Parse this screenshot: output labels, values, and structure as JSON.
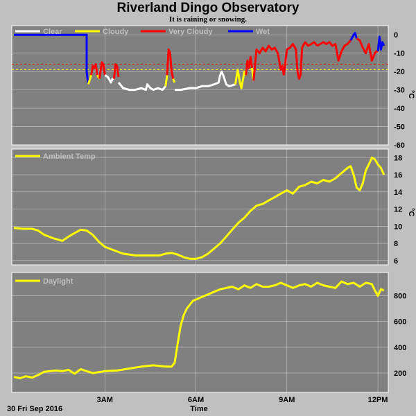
{
  "header": {
    "title": "Riverland Dingo Observatory",
    "subtitle": "It is raining or snowing."
  },
  "footer": {
    "date_label": "30 Fri Sep 2016",
    "xaxis_label": "Time"
  },
  "colors": {
    "background": "#c0c0c0",
    "plot_bg": "#808080",
    "grid": "#ffffff",
    "clear": "#ffffff",
    "cloudy": "#ffff00",
    "very_cloudy": "#ff0000",
    "wet": "#0000ff",
    "threshold_line": "#ff0000",
    "threshold_line2": "#ffff00"
  },
  "chart_data": [
    {
      "type": "line",
      "id": "sky",
      "ylabel": "°C",
      "ylim": [
        -60,
        5
      ],
      "yticks": [
        0,
        -10,
        -20,
        -30,
        -40,
        -50,
        -60
      ],
      "xlim": [
        0,
        12.25
      ],
      "xticks": [
        3,
        6,
        9,
        12
      ],
      "xtick_labels": [
        "3AM",
        "6AM",
        "9AM",
        "12PM"
      ],
      "grid": true,
      "legend_position": "top-left",
      "legend": [
        {
          "name": "Clear",
          "color": "#ffffff"
        },
        {
          "name": "Cloudy",
          "color": "#ffff00"
        },
        {
          "name": "Very Cloudy",
          "color": "#ff0000"
        },
        {
          "name": "Wet",
          "color": "#0000ff"
        }
      ],
      "thresholds": [
        {
          "y": -16,
          "color": "#ff0000"
        },
        {
          "y": -19,
          "color": "#ffff00"
        }
      ],
      "segments": [
        {
          "c": "#0000ff",
          "x": [
            0,
            2.4,
            2.4,
            2.45
          ],
          "y": [
            0,
            0,
            -20,
            -27
          ]
        },
        {
          "c": "#ffff00",
          "x": [
            2.45,
            2.55
          ],
          "y": [
            -27,
            -22
          ]
        },
        {
          "c": "#ff0000",
          "x": [
            2.55,
            2.6,
            2.65,
            2.7,
            2.75
          ],
          "y": [
            -22,
            -17,
            -18,
            -16,
            -22
          ]
        },
        {
          "c": "#ffff00",
          "x": [
            2.75,
            2.82
          ],
          "y": [
            -22,
            -24
          ]
        },
        {
          "c": "#ff0000",
          "x": [
            2.82,
            2.9,
            2.95,
            3.0
          ],
          "y": [
            -24,
            -15,
            -16,
            -22
          ]
        },
        {
          "c": "#ffffff",
          "x": [
            3.0,
            3.1,
            3.2,
            3.25,
            3.3
          ],
          "y": [
            -22,
            -23,
            -26,
            -24,
            -24
          ]
        },
        {
          "c": "#ff0000",
          "x": [
            3.3,
            3.35,
            3.4,
            3.45
          ],
          "y": [
            -24,
            -16,
            -17,
            -23
          ]
        },
        {
          "c": "#ffffff",
          "x": [
            3.45,
            3.6,
            3.8,
            4.0,
            4.2,
            4.35,
            4.4,
            4.5,
            4.6,
            4.75,
            4.9,
            5.0
          ],
          "y": [
            -26,
            -29,
            -30,
            -30,
            -29,
            -30,
            -27,
            -29,
            -30,
            -29,
            -30,
            -28
          ]
        },
        {
          "c": "#ffff00",
          "x": [
            5.0,
            5.05
          ],
          "y": [
            -28,
            -22
          ]
        },
        {
          "c": "#ff0000",
          "x": [
            5.05,
            5.1,
            5.15,
            5.2,
            5.25
          ],
          "y": [
            -22,
            -8,
            -10,
            -20,
            -24
          ]
        },
        {
          "c": "#ffff00",
          "x": [
            5.25,
            5.3
          ],
          "y": [
            -24,
            -26
          ]
        },
        {
          "c": "#ffffff",
          "x": [
            5.3,
            5.5,
            5.8,
            6.0,
            6.2,
            6.4,
            6.6,
            6.75,
            6.8,
            6.85,
            6.9,
            7.0,
            7.1,
            7.3
          ],
          "y": [
            -30,
            -30,
            -29,
            -29,
            -28,
            -28,
            -27,
            -26,
            -22,
            -20,
            -22,
            -27,
            -28,
            -27
          ]
        },
        {
          "c": "#ffff00",
          "x": [
            7.3,
            7.38,
            7.45,
            7.5,
            7.6,
            7.65
          ],
          "y": [
            -27,
            -19,
            -26,
            -29,
            -20,
            -22
          ]
        },
        {
          "c": "#ff0000",
          "x": [
            7.65,
            7.7,
            7.75,
            7.8,
            7.85
          ],
          "y": [
            -22,
            -14,
            -18,
            -12,
            -18
          ]
        },
        {
          "c": "#ffff00",
          "x": [
            7.85,
            7.9
          ],
          "y": [
            -18,
            -25
          ]
        },
        {
          "c": "#ff0000",
          "x": [
            7.9,
            8.0,
            8.1,
            8.2,
            8.3,
            8.4,
            8.5,
            8.6,
            8.7,
            8.8,
            8.85,
            8.9
          ],
          "y": [
            -25,
            -8,
            -10,
            -7,
            -9,
            -6,
            -8,
            -7,
            -10,
            -19,
            -17,
            -22
          ]
        },
        {
          "c": "#ff0000",
          "x": [
            8.9,
            9.0,
            9.1,
            9.2,
            9.3,
            9.35,
            9.4,
            9.45,
            9.5,
            9.6,
            9.7,
            9.8,
            9.9,
            10.0
          ],
          "y": [
            -22,
            -8,
            -7,
            -5,
            -8,
            -20,
            -24,
            -22,
            -7,
            -4,
            -6,
            -5,
            -4,
            -6
          ]
        },
        {
          "c": "#ff0000",
          "x": [
            10.0,
            10.1,
            10.2,
            10.3,
            10.4,
            10.5,
            10.6,
            10.7,
            10.8,
            10.9,
            11.0,
            11.1
          ],
          "y": [
            -6,
            -5,
            -4,
            -5,
            -4,
            -6,
            -5,
            -14,
            -9,
            -6,
            -5,
            -3
          ]
        },
        {
          "c": "#0000ff",
          "x": [
            11.1,
            11.2,
            11.25,
            11.3
          ],
          "y": [
            -3,
            0,
            1,
            -2
          ]
        },
        {
          "c": "#ff0000",
          "x": [
            11.3,
            11.4,
            11.5,
            11.6,
            11.7,
            11.8,
            11.9,
            11.95,
            12.0
          ],
          "y": [
            -2,
            -3,
            -7,
            -10,
            -5,
            -14,
            -10,
            -9,
            -9
          ]
        },
        {
          "c": "#0000ff",
          "x": [
            12.0,
            12.05,
            12.1,
            12.15,
            12.2
          ],
          "y": [
            -9,
            -1,
            -8,
            -4,
            -6
          ]
        }
      ]
    },
    {
      "type": "line",
      "id": "ambient",
      "ylabel": "°C",
      "ylim": [
        5.5,
        19
      ],
      "yticks": [
        6,
        8,
        10,
        12,
        14,
        16,
        18
      ],
      "xlim": [
        0,
        12.25
      ],
      "xticks": [
        3,
        6,
        9,
        12
      ],
      "grid": true,
      "legend_position": "top-left",
      "series": [
        {
          "name": "Ambient Temp",
          "color": "#ffff00",
          "x": [
            0,
            0.3,
            0.6,
            0.8,
            1.0,
            1.3,
            1.6,
            1.8,
            2.0,
            2.2,
            2.4,
            2.6,
            2.8,
            3.0,
            3.3,
            3.6,
            4.0,
            4.4,
            4.8,
            5.0,
            5.2,
            5.4,
            5.6,
            5.8,
            6.0,
            6.2,
            6.4,
            6.6,
            6.8,
            7.0,
            7.2,
            7.4,
            7.6,
            7.8,
            8.0,
            8.2,
            8.4,
            8.6,
            8.8,
            9.0,
            9.2,
            9.4,
            9.6,
            9.8,
            10.0,
            10.2,
            10.4,
            10.6,
            10.8,
            11.0,
            11.1,
            11.2,
            11.3,
            11.4,
            11.5,
            11.6,
            11.7,
            11.8,
            11.9,
            12.0,
            12.1,
            12.2
          ],
          "y": [
            9.8,
            9.7,
            9.7,
            9.5,
            9.0,
            8.6,
            8.3,
            8.8,
            9.2,
            9.6,
            9.5,
            9.0,
            8.2,
            7.6,
            7.2,
            6.8,
            6.6,
            6.6,
            6.6,
            6.8,
            6.9,
            6.7,
            6.4,
            6.2,
            6.2,
            6.4,
            6.8,
            7.4,
            8.0,
            8.8,
            9.6,
            10.4,
            11.0,
            11.8,
            12.4,
            12.6,
            13.0,
            13.4,
            13.8,
            14.2,
            13.8,
            14.6,
            14.8,
            15.2,
            15.0,
            15.4,
            15.2,
            15.6,
            16.2,
            16.8,
            17.0,
            16.0,
            14.5,
            14.2,
            15.0,
            16.5,
            17.2,
            18.0,
            17.8,
            17.2,
            16.8,
            16.0
          ]
        }
      ]
    },
    {
      "type": "line",
      "id": "daylight",
      "ylim": [
        50,
        980
      ],
      "yticks": [
        200,
        400,
        600,
        800
      ],
      "xlim": [
        0,
        12.25
      ],
      "xticks": [
        3,
        6,
        9,
        12
      ],
      "grid": true,
      "legend_position": "top-left",
      "series": [
        {
          "name": "Daylight",
          "color": "#ffff00",
          "x": [
            0,
            0.2,
            0.4,
            0.6,
            0.8,
            1.0,
            1.2,
            1.4,
            1.6,
            1.8,
            2.0,
            2.2,
            2.4,
            2.6,
            3.0,
            3.4,
            3.8,
            4.2,
            4.6,
            5.0,
            5.2,
            5.3,
            5.4,
            5.5,
            5.6,
            5.7,
            5.8,
            5.9,
            6.0,
            6.2,
            6.4,
            6.6,
            6.8,
            7.0,
            7.2,
            7.4,
            7.6,
            7.8,
            8.0,
            8.2,
            8.4,
            8.6,
            8.8,
            9.0,
            9.2,
            9.4,
            9.6,
            9.8,
            10.0,
            10.2,
            10.4,
            10.6,
            10.8,
            11.0,
            11.2,
            11.4,
            11.6,
            11.8,
            11.9,
            12.0,
            12.1,
            12.2
          ],
          "y": [
            170,
            160,
            175,
            165,
            185,
            210,
            215,
            220,
            215,
            225,
            195,
            230,
            215,
            200,
            215,
            220,
            235,
            250,
            260,
            250,
            250,
            280,
            430,
            570,
            650,
            700,
            730,
            760,
            770,
            790,
            810,
            830,
            850,
            860,
            870,
            850,
            880,
            860,
            890,
            870,
            870,
            880,
            900,
            880,
            860,
            880,
            890,
            870,
            900,
            880,
            870,
            860,
            910,
            890,
            900,
            870,
            900,
            890,
            840,
            800,
            850,
            840
          ]
        }
      ]
    }
  ]
}
